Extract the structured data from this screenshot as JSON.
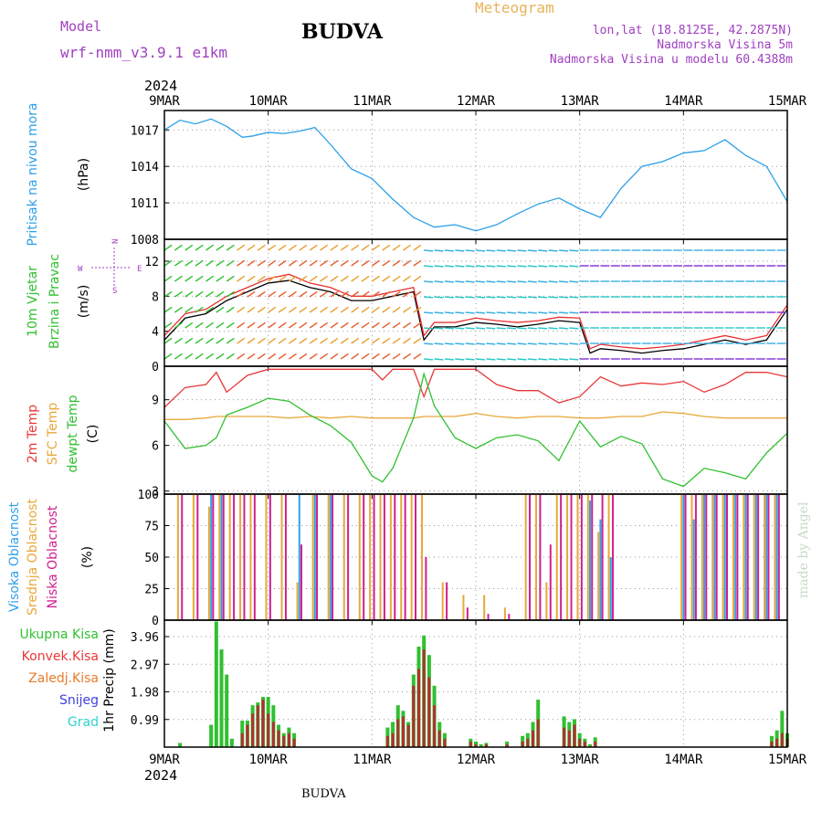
{
  "header": {
    "model_label": "Model",
    "model_version": "wrf-nmm_v3.9.1  e1km",
    "city": "BUDVA",
    "meteogram": "Meteogram",
    "lonlat": "lon,lat (18.8125E, 42.2875N)",
    "altitude": "Nadmorska Visina 5m",
    "model_altitude": "Nadmorska Visina u modelu 60.4388m"
  },
  "year": "2024",
  "dates": [
    "9MAR",
    "10MAR",
    "11MAR",
    "12MAR",
    "13MAR",
    "14MAR",
    "15MAR"
  ],
  "watermark": "made by Angel",
  "footer_city": "BUDVA",
  "chart_data": [
    {
      "type": "line",
      "panel": "pressure",
      "ylabel_main": "Pritisak na nivou mora",
      "ylabel_unit": "(hPa)",
      "yticks": [
        "1008",
        "1011",
        "1014",
        "1017"
      ],
      "ylim": [
        1008,
        1018.6
      ],
      "x": [
        0,
        0.15,
        0.3,
        0.45,
        0.6,
        0.75,
        0.85,
        1.0,
        1.15,
        1.3,
        1.45,
        1.6,
        1.8,
        2.0,
        2.2,
        2.4,
        2.6,
        2.8,
        3.0,
        3.2,
        3.4,
        3.6,
        3.8,
        4.0,
        4.2,
        4.4,
        4.6,
        4.8,
        5.0,
        5.2,
        5.4,
        5.6,
        5.8,
        6.0
      ],
      "series": [
        {
          "color": "#2ca0e8",
          "values": [
            1017.0,
            1017.8,
            1017.5,
            1017.9,
            1017.3,
            1016.4,
            1016.5,
            1016.8,
            1016.7,
            1016.9,
            1017.2,
            1015.8,
            1013.8,
            1013.0,
            1011.3,
            1009.8,
            1009.0,
            1009.2,
            1008.7,
            1009.2,
            1010.1,
            1010.9,
            1011.4,
            1010.5,
            1009.8,
            1012.2,
            1014.0,
            1014.4,
            1015.1,
            1015.3,
            1016.2,
            1014.9,
            1014.0,
            1011.1
          ]
        }
      ]
    },
    {
      "type": "line",
      "panel": "wind",
      "ylabel_main": "10m Vjetar",
      "ylabel_sub": "Brzina i Pravac",
      "ylabel_unit": "(m/s)",
      "compass": {
        "n": "N",
        "s": "S",
        "e": "E",
        "w": "W"
      },
      "yticks": [
        "0",
        "4",
        "8",
        "12"
      ],
      "ylim": [
        0,
        14.5
      ],
      "x": [
        0,
        0.2,
        0.4,
        0.6,
        0.8,
        1.0,
        1.2,
        1.4,
        1.6,
        1.8,
        2.0,
        2.2,
        2.4,
        2.5,
        2.6,
        2.8,
        3.0,
        3.2,
        3.4,
        3.6,
        3.8,
        4.0,
        4.1,
        4.2,
        4.4,
        4.6,
        4.8,
        5.0,
        5.2,
        5.4,
        5.6,
        5.8,
        6.0
      ],
      "series": [
        {
          "name": "",
          "color": "#000000",
          "values": [
            3.0,
            5.5,
            6.0,
            7.5,
            8.5,
            9.5,
            9.8,
            9.0,
            8.5,
            7.5,
            7.5,
            8.0,
            8.5,
            3.0,
            4.5,
            4.5,
            5.0,
            4.8,
            4.5,
            4.8,
            5.2,
            5.0,
            1.5,
            2.0,
            1.8,
            1.5,
            1.8,
            2.0,
            2.5,
            3.0,
            2.5,
            3.0,
            6.5
          ]
        },
        {
          "name": "",
          "color": "#e83030",
          "values": [
            3.5,
            6.0,
            6.5,
            8.0,
            9.0,
            10.0,
            10.5,
            9.5,
            9.0,
            8.0,
            8.0,
            8.5,
            9.0,
            3.5,
            5.0,
            5.0,
            5.5,
            5.2,
            5.0,
            5.2,
            5.6,
            5.5,
            2.0,
            2.5,
            2.2,
            2.0,
            2.2,
            2.5,
            3.0,
            3.5,
            3.0,
            3.5,
            7.0
          ]
        }
      ]
    },
    {
      "type": "line",
      "panel": "temperature",
      "ylabel_a": "2m Temp",
      "ylabel_b": "SFC Temp",
      "ylabel_c": "dewpt Temp",
      "ylabel_unit": "(C)",
      "yticks": [
        "3",
        "6",
        "9"
      ],
      "ylim": [
        2.8,
        11.2
      ],
      "x": [
        0,
        0.2,
        0.4,
        0.5,
        0.6,
        0.8,
        1.0,
        1.2,
        1.4,
        1.6,
        1.8,
        2.0,
        2.1,
        2.2,
        2.4,
        2.5,
        2.6,
        2.8,
        3.0,
        3.2,
        3.4,
        3.6,
        3.8,
        4.0,
        4.2,
        4.4,
        4.6,
        4.8,
        5.0,
        5.2,
        5.4,
        5.6,
        5.8,
        6.0
      ],
      "series": [
        {
          "name": "",
          "color": "#e83838",
          "values": [
            8.5,
            9.8,
            10.0,
            10.8,
            9.5,
            10.6,
            11.0,
            11.0,
            11.0,
            11.0,
            11.0,
            11.0,
            10.3,
            11.0,
            11.0,
            9.2,
            11.0,
            11.0,
            11.0,
            10.0,
            9.6,
            9.6,
            8.8,
            9.2,
            10.5,
            9.9,
            10.1,
            10.0,
            10.2,
            9.5,
            10.0,
            10.8,
            10.8,
            10.5
          ]
        },
        {
          "name": "",
          "color": "#e8a83a",
          "values": [
            7.7,
            7.7,
            7.8,
            7.9,
            7.9,
            7.9,
            7.9,
            7.8,
            7.9,
            7.8,
            7.9,
            7.8,
            7.8,
            7.8,
            7.8,
            7.9,
            7.9,
            7.9,
            8.1,
            7.9,
            7.8,
            7.9,
            7.9,
            7.8,
            7.8,
            7.9,
            7.9,
            8.2,
            8.1,
            7.9,
            7.8,
            7.8,
            7.8,
            7.8
          ]
        },
        {
          "name": "",
          "color": "#30c030",
          "values": [
            7.6,
            5.8,
            6.0,
            6.5,
            8.0,
            8.5,
            9.1,
            8.9,
            8.0,
            7.3,
            6.2,
            4.0,
            3.6,
            4.5,
            7.8,
            10.7,
            8.6,
            6.5,
            5.8,
            6.5,
            6.7,
            6.3,
            5.0,
            7.6,
            5.9,
            6.6,
            6.1,
            3.8,
            3.3,
            4.5,
            4.2,
            3.8,
            5.5,
            6.8
          ]
        }
      ]
    },
    {
      "type": "bar",
      "panel": "cloud",
      "ylabel_a": "Visoka Oblacnost",
      "ylabel_b": "Srednja Oblacnost",
      "ylabel_c": "Niska Oblacnost",
      "ylabel_unit": "(%)",
      "yticks": [
        "0",
        "25",
        "50",
        "75",
        "100"
      ],
      "ylim": [
        0,
        100
      ],
      "x": [
        0.15,
        0.3,
        0.45,
        0.55,
        0.65,
        0.75,
        0.85,
        1.0,
        1.15,
        1.3,
        1.45,
        1.6,
        1.75,
        1.9,
        2.0,
        2.1,
        2.2,
        2.3,
        2.4,
        2.5,
        2.7,
        2.9,
        3.1,
        3.3,
        3.5,
        3.6,
        3.7,
        3.8,
        3.9,
        4.0,
        4.1,
        4.2,
        4.3,
        4.4,
        4.6,
        4.8,
        5.0,
        5.1,
        5.2,
        5.3,
        5.4,
        5.5,
        5.6,
        5.7,
        5.8,
        5.9
      ],
      "series": [
        {
          "name": "",
          "color": "#e8a83a",
          "values": [
            100,
            100,
            90,
            100,
            100,
            100,
            100,
            100,
            100,
            30,
            100,
            100,
            100,
            100,
            100,
            100,
            100,
            100,
            100,
            100,
            30,
            20,
            20,
            10,
            100,
            100,
            30,
            100,
            100,
            100,
            100,
            70,
            100,
            0,
            0,
            0,
            100,
            100,
            100,
            100,
            100,
            100,
            100,
            100,
            100,
            100
          ]
        },
        {
          "name": "",
          "color": "#30a0e8",
          "values": [
            0,
            0,
            100,
            100,
            0,
            0,
            0,
            0,
            0,
            100,
            100,
            100,
            0,
            0,
            0,
            0,
            0,
            0,
            0,
            0,
            0,
            0,
            0,
            0,
            0,
            0,
            0,
            0,
            0,
            0,
            95,
            80,
            50,
            0,
            0,
            0,
            100,
            80,
            100,
            100,
            100,
            100,
            100,
            100,
            100,
            100
          ]
        },
        {
          "name": "",
          "color": "#d02090",
          "values": [
            100,
            100,
            100,
            100,
            100,
            100,
            100,
            100,
            100,
            60,
            100,
            100,
            100,
            100,
            100,
            100,
            100,
            100,
            100,
            50,
            30,
            10,
            5,
            5,
            100,
            100,
            60,
            100,
            100,
            100,
            100,
            100,
            100,
            0,
            0,
            0,
            100,
            100,
            100,
            100,
            100,
            100,
            100,
            100,
            100,
            100
          ]
        }
      ]
    },
    {
      "type": "bar",
      "panel": "precip",
      "legend": [
        "Ukupna Kisa",
        "Konvek.Kisa",
        "Zaledj.Kisa",
        "Snijeg",
        "Grad"
      ],
      "legend_colors": [
        "#30c030",
        "#e83838",
        "#e87a2a",
        "#4040e0",
        "#30d0d0"
      ],
      "ylabel_unit": "1hr Precip (mm)",
      "yticks": [
        "0.99",
        "1.98",
        "2.97",
        "3.96"
      ],
      "ylim": [
        0,
        4.55
      ],
      "x": [
        0.15,
        0.45,
        0.5,
        0.55,
        0.6,
        0.65,
        0.75,
        0.8,
        0.85,
        0.9,
        0.95,
        1.0,
        1.05,
        1.1,
        1.15,
        1.2,
        1.25,
        2.15,
        2.2,
        2.25,
        2.3,
        2.35,
        2.4,
        2.45,
        2.5,
        2.55,
        2.6,
        2.65,
        2.7,
        2.95,
        3.0,
        3.05,
        3.1,
        3.3,
        3.45,
        3.5,
        3.55,
        3.6,
        3.85,
        3.9,
        3.95,
        4.0,
        4.05,
        4.1,
        4.15,
        5.85,
        5.9,
        5.95,
        6.0
      ],
      "series": [
        {
          "name": "Ukupna Kisa",
          "color": "#30c030",
          "values": [
            0.15,
            0.8,
            4.5,
            3.5,
            2.6,
            0.3,
            0.95,
            0.95,
            1.5,
            1.6,
            1.8,
            1.8,
            1.5,
            0.8,
            0.5,
            0.7,
            0.5,
            0.7,
            0.9,
            1.5,
            1.3,
            0.9,
            2.6,
            3.6,
            4.0,
            3.3,
            2.2,
            0.9,
            0.5,
            0.3,
            0.2,
            0.1,
            0.15,
            0.2,
            0.4,
            0.5,
            0.9,
            1.7,
            1.1,
            0.9,
            1.0,
            0.5,
            0.3,
            0.1,
            0.35,
            0.4,
            0.6,
            1.3,
            0.5
          ]
        },
        {
          "name": "Konvek.Kisa",
          "color": "#b03030",
          "values": [
            0,
            0,
            0,
            0,
            0,
            0,
            0.5,
            0.8,
            1.2,
            1.5,
            1.7,
            1.2,
            0.9,
            0.6,
            0.4,
            0.5,
            0.3,
            0.4,
            0.5,
            1.0,
            1.1,
            0.8,
            2.2,
            2.8,
            3.5,
            2.5,
            1.5,
            0.6,
            0.3,
            0.2,
            0.1,
            0,
            0.1,
            0.1,
            0.2,
            0.3,
            0.6,
            1.0,
            0.7,
            0.6,
            0.8,
            0.3,
            0.2,
            0,
            0.2,
            0.2,
            0.3,
            0.5,
            0.3
          ]
        }
      ]
    }
  ]
}
